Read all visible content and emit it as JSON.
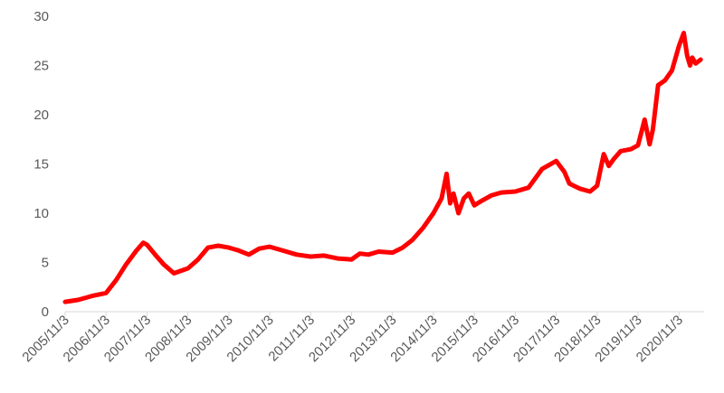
{
  "chart_data": {
    "type": "line",
    "title": "",
    "xlabel": "",
    "ylabel": "",
    "ylim": [
      0,
      30
    ],
    "yticks": [
      "0",
      "5",
      "10",
      "15",
      "20",
      "25",
      "30"
    ],
    "xticks": [
      "2005/11/3",
      "2006/11/3",
      "2007/11/3",
      "2008/11/3",
      "2009/11/3",
      "2010/11/3",
      "2011/11/3",
      "2012/11/3",
      "2013/11/3",
      "2014/11/3",
      "2015/11/3",
      "2016/11/3",
      "2017/11/3",
      "2018/11/3",
      "2019/11/3",
      "2020/11/3"
    ],
    "grid": false,
    "legend": "none",
    "line_color": "#ff0000",
    "series": [
      {
        "x": [
          "2005/11/3",
          "2006/3/1",
          "2006/7/1",
          "2006/11/3",
          "2007/2/1",
          "2007/5/1",
          "2007/8/1",
          "2007/10/1",
          "2007/11/3",
          "2008/1/15",
          "2008/4/1",
          "2008/7/1",
          "2008/11/3",
          "2009/2/1",
          "2009/5/1",
          "2009/8/1",
          "2009/11/3",
          "2010/2/1",
          "2010/5/1",
          "2010/8/1",
          "2010/11/3",
          "2011/3/1",
          "2011/7/1",
          "2011/11/3",
          "2012/3/1",
          "2012/7/1",
          "2012/11/3",
          "2013/1/15",
          "2013/4/1",
          "2013/7/1",
          "2013/11/3",
          "2014/2/1",
          "2014/5/1",
          "2014/8/1",
          "2014/11/3",
          "2015/1/15",
          "2015/3/1",
          "2015/4/1",
          "2015/5/1",
          "2015/6/15",
          "2015/8/1",
          "2015/9/15",
          "2015/11/3",
          "2016/1/15",
          "2016/4/1",
          "2016/7/1",
          "2016/11/3",
          "2017/3/1",
          "2017/7/1",
          "2017/11/3",
          "2018/1/15",
          "2018/3/1",
          "2018/6/1",
          "2018/9/1",
          "2018/11/3",
          "2019/1/1",
          "2019/2/15",
          "2019/4/1",
          "2019/6/1",
          "2019/9/1",
          "2019/11/3",
          "2020/1/1",
          "2020/2/15",
          "2020/3/15",
          "2020/5/1",
          "2020/7/1",
          "2020/9/1",
          "2020/11/3",
          "2020/12/15",
          "2021/1/15",
          "2021/2/10",
          "2021/3/1",
          "2021/4/1",
          "2021/5/15"
        ],
        "values": [
          1.0,
          1.2,
          1.6,
          1.9,
          3.2,
          4.8,
          6.2,
          7.0,
          6.8,
          5.8,
          4.8,
          3.9,
          4.4,
          5.3,
          6.5,
          6.7,
          6.5,
          6.2,
          5.8,
          6.4,
          6.6,
          6.2,
          5.8,
          5.6,
          5.7,
          5.4,
          5.3,
          5.9,
          5.8,
          6.1,
          6.0,
          6.5,
          7.3,
          8.5,
          10.0,
          11.5,
          14.0,
          11.0,
          12.0,
          10.0,
          11.5,
          12.0,
          10.8,
          11.3,
          11.8,
          12.1,
          12.2,
          12.6,
          14.5,
          15.3,
          14.2,
          13.0,
          12.5,
          12.2,
          12.8,
          16.0,
          14.8,
          15.5,
          16.3,
          16.5,
          16.9,
          19.5,
          17.0,
          18.5,
          23.0,
          23.5,
          24.5,
          27.0,
          28.3,
          26.0,
          25.0,
          25.8,
          25.2,
          25.6
        ]
      }
    ]
  }
}
